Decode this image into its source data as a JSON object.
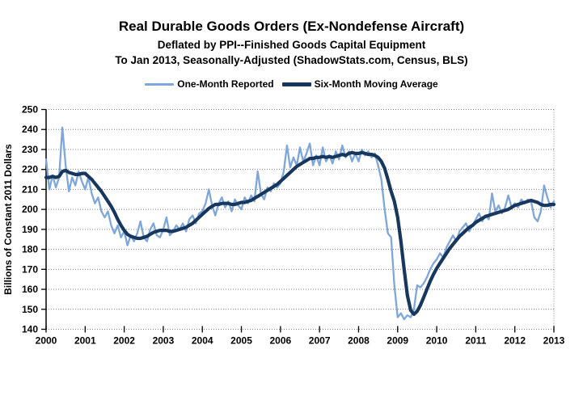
{
  "title": "Real Durable Goods Orders (Ex-Nondefense Aircraft)",
  "subtitle1": "Deflated by PPI--Finished Goods Capital Equipment",
  "subtitle2": "To Jan 2013, Seasonally-Adjusted (ShadowStats.com, Census, BLS)",
  "legend": [
    {
      "label": "One-Month Reported",
      "color": "#7EA6DC",
      "thickness": 3
    },
    {
      "label": "Six-Month Moving Average",
      "color": "#17375E",
      "thickness": 5
    }
  ],
  "colors": {
    "background": "#FFFFFF",
    "grid": "#808080",
    "axis": "#000000",
    "text": "#000000",
    "one_month_line": "#7EA6DC",
    "six_month_line": "#17375E"
  },
  "chart_data": {
    "type": "line",
    "title": "Real Durable Goods Orders (Ex-Nondefense Aircraft)",
    "xlabel": "",
    "ylabel": "Billions of Constant 2011 Dollars",
    "ylim": [
      140,
      250
    ],
    "ytick_step": 10,
    "ytick_labels": [
      "140",
      "150",
      "160",
      "170",
      "180",
      "190",
      "200",
      "210",
      "220",
      "230",
      "240",
      "250"
    ],
    "x_tick_labels": [
      "2000",
      "2001",
      "2002",
      "2003",
      "2004",
      "2005",
      "2006",
      "2007",
      "2008",
      "2009",
      "2010",
      "2011",
      "2012",
      "2013"
    ],
    "x_unit": "month",
    "x_range": [
      "2000-01",
      "2013-01"
    ],
    "grid": "horizontal dotted gray",
    "legend_position": "top",
    "series": [
      {
        "name": "One-Month Reported",
        "color": "#7EA6DC",
        "width": 2.3,
        "monthly_values": [
          225,
          210,
          217,
          211,
          216,
          241,
          222,
          209,
          216,
          212,
          219,
          214,
          210,
          216,
          208,
          203,
          206,
          199,
          196,
          199,
          192,
          188,
          192,
          186,
          189,
          182,
          187,
          184,
          188,
          194,
          186,
          184,
          190,
          193,
          187,
          186,
          190,
          196,
          187,
          189,
          192,
          190,
          193,
          189,
          195,
          197,
          193,
          198,
          199,
          203,
          210,
          202,
          197,
          203,
          206,
          201,
          204,
          199,
          205,
          202,
          200,
          206,
          203,
          207,
          204,
          219,
          208,
          205,
          211,
          209,
          213,
          211,
          213,
          219,
          232,
          221,
          226,
          222,
          231,
          224,
          228,
          233,
          222,
          227,
          222,
          231,
          224,
          227,
          223,
          229,
          225,
          232,
          226,
          229,
          224,
          228,
          224,
          230,
          227,
          229,
          226,
          228,
          222,
          215,
          200,
          188,
          186,
          162,
          146,
          148,
          145,
          147,
          146,
          150,
          162,
          161,
          163,
          166,
          170,
          173,
          175,
          178,
          176,
          181,
          184,
          187,
          184,
          189,
          191,
          193,
          189,
          192,
          195,
          198,
          194,
          197,
          195,
          208,
          199,
          202,
          198,
          201,
          207,
          201,
          203,
          201,
          205,
          203,
          205,
          204,
          196,
          194,
          199,
          212,
          206,
          201,
          204
        ]
      },
      {
        "name": "Six-Month Moving Average",
        "color": "#17375E",
        "width": 4.2,
        "monthly_values": [
          216,
          216,
          216.5,
          216,
          216.5,
          219,
          219.5,
          218.5,
          218,
          217.5,
          217.5,
          218,
          218,
          216.5,
          215,
          213,
          211,
          209,
          206.5,
          204,
          201.5,
          198.5,
          195,
          192,
          189.5,
          187.5,
          186.5,
          186,
          185.5,
          185.5,
          186,
          186.5,
          187.5,
          188.5,
          189,
          189.5,
          189.5,
          189.5,
          189,
          189,
          189.5,
          190,
          190.5,
          191,
          192,
          193,
          194.5,
          196,
          197.5,
          199,
          200.5,
          201.5,
          202.5,
          202.5,
          203,
          203,
          203,
          202.5,
          202.5,
          203,
          203.5,
          203.5,
          204,
          204.5,
          205.5,
          206.5,
          207.5,
          208.5,
          209.5,
          210.5,
          211.5,
          212.5,
          214,
          215.5,
          217,
          218.5,
          220,
          221.5,
          222.5,
          223.5,
          224.5,
          225.5,
          225.5,
          226,
          226,
          226.5,
          226,
          226.5,
          226,
          226.5,
          227,
          227.5,
          227,
          228,
          228.5,
          228,
          228,
          228.5,
          228,
          227.5,
          227.5,
          227,
          226,
          224,
          220.5,
          215,
          209,
          204,
          196,
          184,
          170,
          157,
          149.5,
          147.5,
          149,
          152,
          156,
          160,
          164,
          167.5,
          170.5,
          173,
          175.5,
          178,
          180.5,
          182.5,
          184.5,
          186.5,
          188,
          189.5,
          191,
          192,
          193.5,
          194.5,
          195.5,
          196.5,
          197,
          197.5,
          198,
          198.5,
          199,
          199.5,
          200,
          201,
          202,
          202.5,
          203,
          203.5,
          204,
          204.5,
          204,
          203.5,
          202.5,
          202,
          202,
          202.5,
          202.5
        ]
      }
    ]
  }
}
